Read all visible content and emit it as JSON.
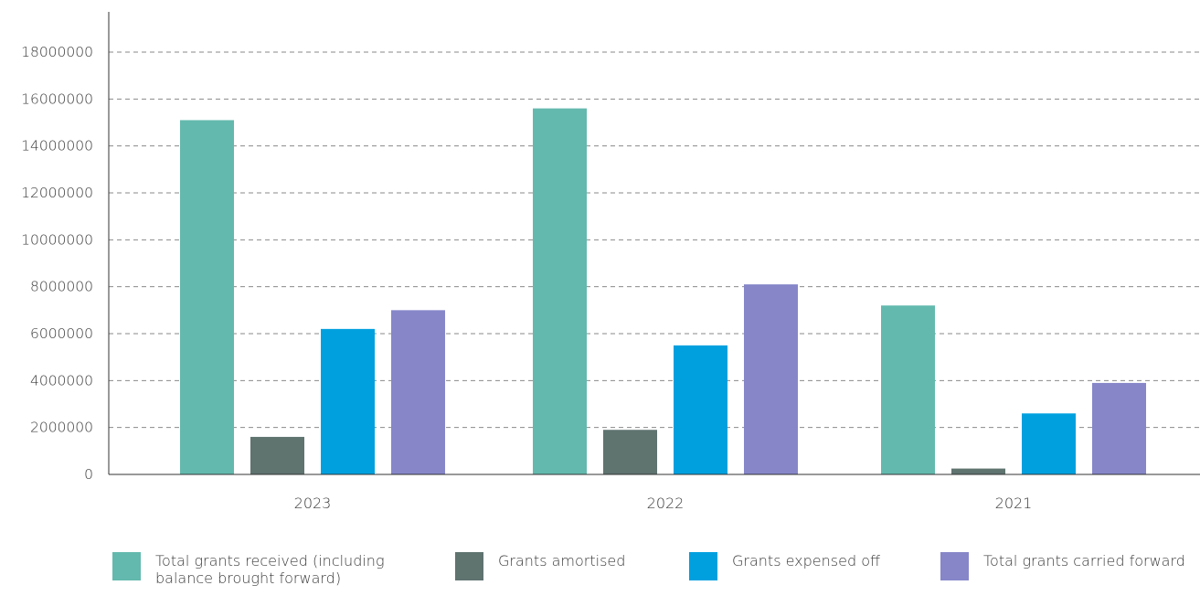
{
  "chart_data": {
    "type": "bar",
    "categories": [
      "2023",
      "2022",
      "2021"
    ],
    "series": [
      {
        "name": "Total grants received (including balance brought forward)",
        "color": "#63b9ad",
        "values": [
          15100000,
          15600000,
          7200000
        ]
      },
      {
        "name": "Grants amortised",
        "color": "#5f736f",
        "values": [
          1600000,
          1900000,
          250000
        ]
      },
      {
        "name": "Grants expensed off",
        "color": "#00a0df",
        "values": [
          6200000,
          5500000,
          2600000
        ]
      },
      {
        "name": "Total grants carried forward",
        "color": "#8686c9",
        "values": [
          7000000,
          8100000,
          3900000
        ]
      }
    ],
    "ylim": [
      0,
      18000000
    ],
    "yticks": [
      "0",
      "2000000",
      "4000000",
      "6000000",
      "8000000",
      "10000000",
      "12000000",
      "14000000",
      "16000000",
      "18000000"
    ],
    "grid": true,
    "legend_position": "bottom"
  },
  "legend": {
    "items": [
      {
        "label": "Total grants received (including balance brought forward)",
        "color": "#63b9ad"
      },
      {
        "label": "Grants amortised",
        "color": "#5f736f"
      },
      {
        "label": "Grants expensed off",
        "color": "#00a0df"
      },
      {
        "label": "Total grants carried forward",
        "color": "#8686c9"
      }
    ]
  }
}
